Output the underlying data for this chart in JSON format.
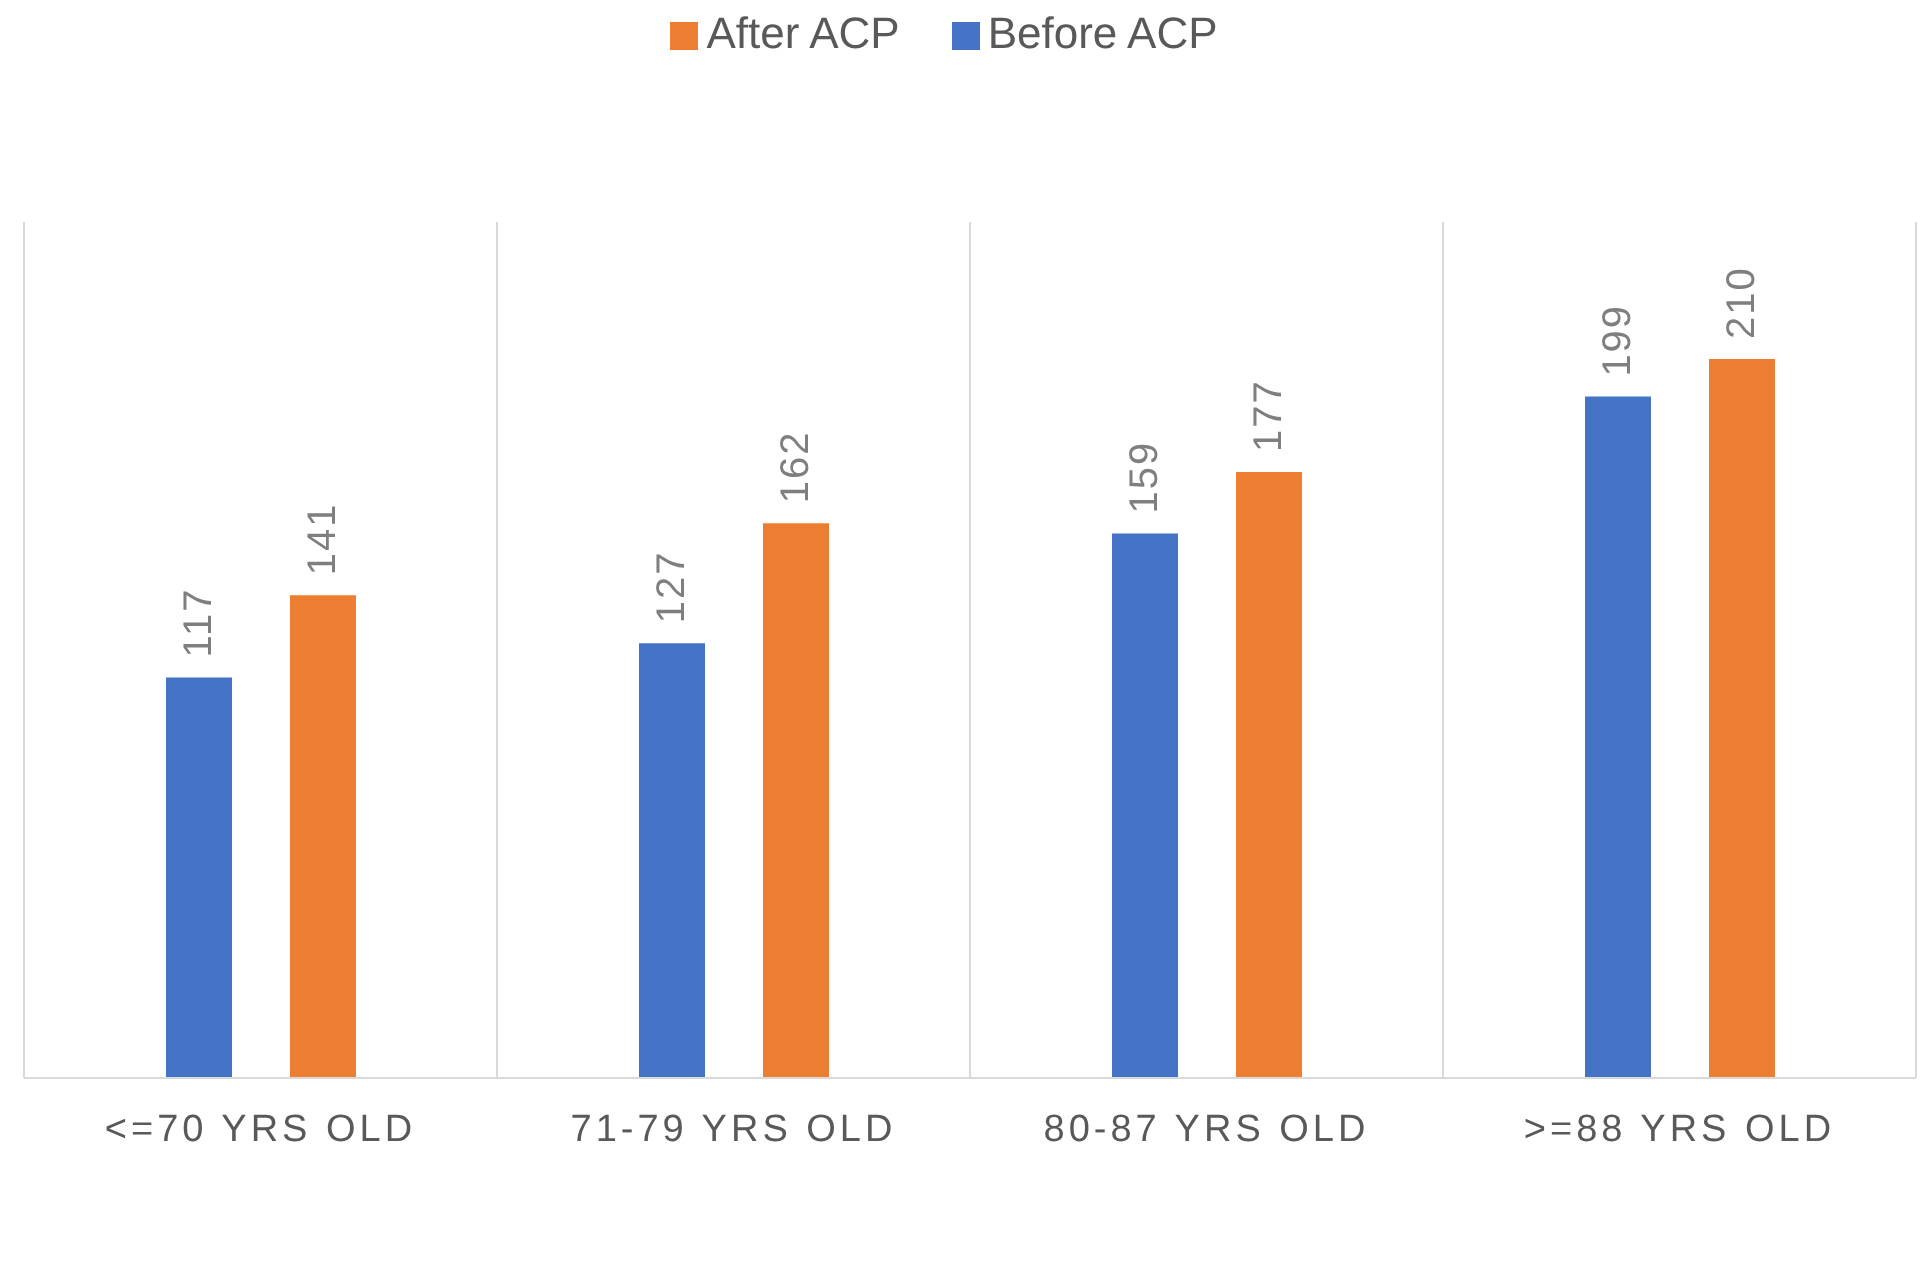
{
  "chart_data": {
    "type": "bar",
    "categories": [
      "<=70 YRS OLD",
      "71-79 YRS OLD",
      "80-87 YRS OLD",
      ">=88 YRS OLD"
    ],
    "series": [
      {
        "name": "Before ACP",
        "color": "#4472c4",
        "values": [
          117,
          127,
          159,
          199
        ]
      },
      {
        "name": "After ACP",
        "color": "#ed7d31",
        "values": [
          141,
          162,
          177,
          210
        ]
      }
    ],
    "ylim": [
      0,
      250
    ],
    "data_labels": true,
    "legend": "top",
    "grid": "x"
  }
}
